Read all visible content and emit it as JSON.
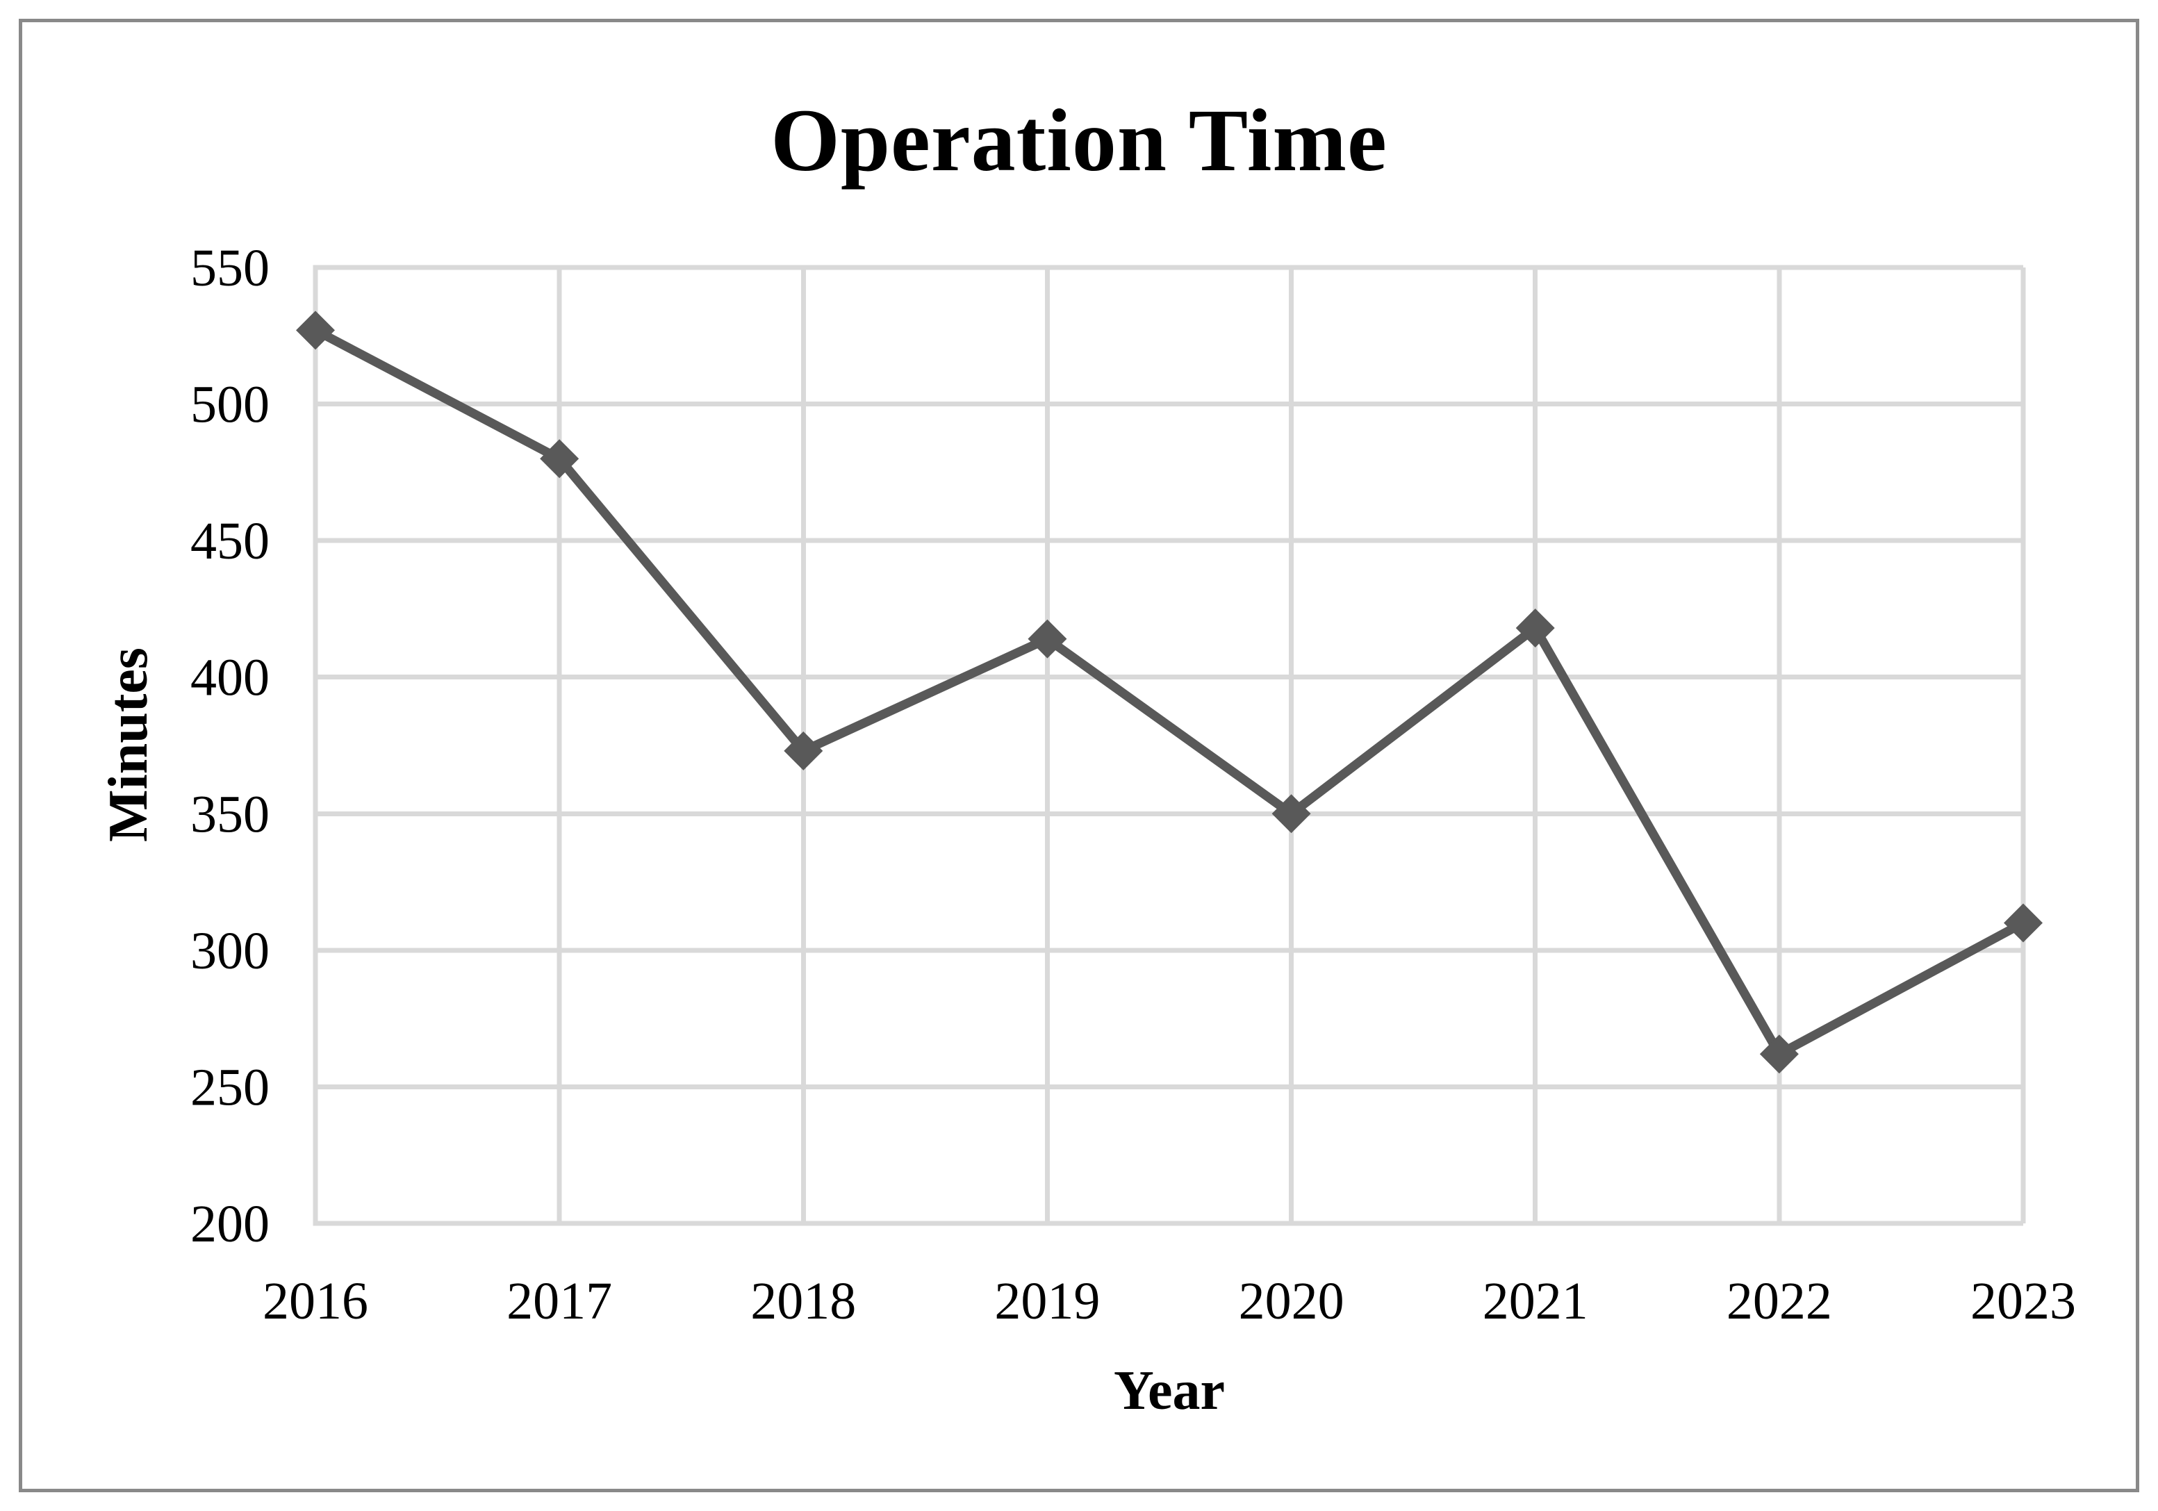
{
  "chart_data": {
    "type": "line",
    "title": "Operation Time",
    "xlabel": "Year",
    "ylabel": "Minutes",
    "categories": [
      "2016",
      "2017",
      "2018",
      "2019",
      "2020",
      "2021",
      "2022",
      "2023"
    ],
    "values": [
      527,
      480,
      373,
      414,
      350,
      418,
      262,
      310
    ],
    "ylim": [
      200,
      550
    ],
    "ytick_step": 50,
    "ytick_labels": [
      "550",
      "500",
      "450",
      "400",
      "350",
      "300",
      "250",
      "200"
    ],
    "grid": true,
    "legend": "none",
    "marker": "diamond",
    "colors": {
      "line": "#595959",
      "marker": "#595959",
      "gridline": "#D9D9D9",
      "axis": "#D9D9D9",
      "text": "#000000",
      "frame_border": "#898989",
      "background": "#FFFFFF"
    }
  }
}
